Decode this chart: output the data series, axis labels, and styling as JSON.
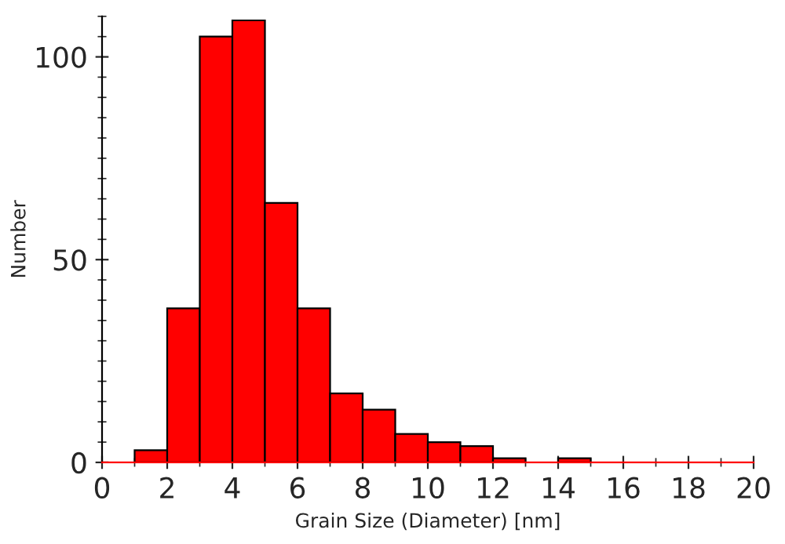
{
  "chart_data": {
    "type": "histogram",
    "xlabel": "Grain Size (Diameter) [nm]",
    "ylabel": "Number",
    "bins": [
      0,
      1,
      2,
      3,
      4,
      5,
      6,
      7,
      8,
      9,
      10,
      11,
      12,
      13,
      14,
      15,
      16,
      17,
      18,
      19,
      20
    ],
    "values": [
      0,
      3,
      38,
      105,
      109,
      64,
      38,
      17,
      13,
      7,
      5,
      4,
      1,
      0,
      1,
      0,
      0,
      0,
      0,
      0
    ],
    "color": "#ff0000",
    "xlim": [
      0,
      20
    ],
    "ylim": [
      0,
      110
    ],
    "xticks": [
      0,
      2,
      4,
      6,
      8,
      10,
      12,
      14,
      16,
      18,
      20
    ],
    "yticks": [
      0,
      50,
      100
    ],
    "grid": false
  }
}
